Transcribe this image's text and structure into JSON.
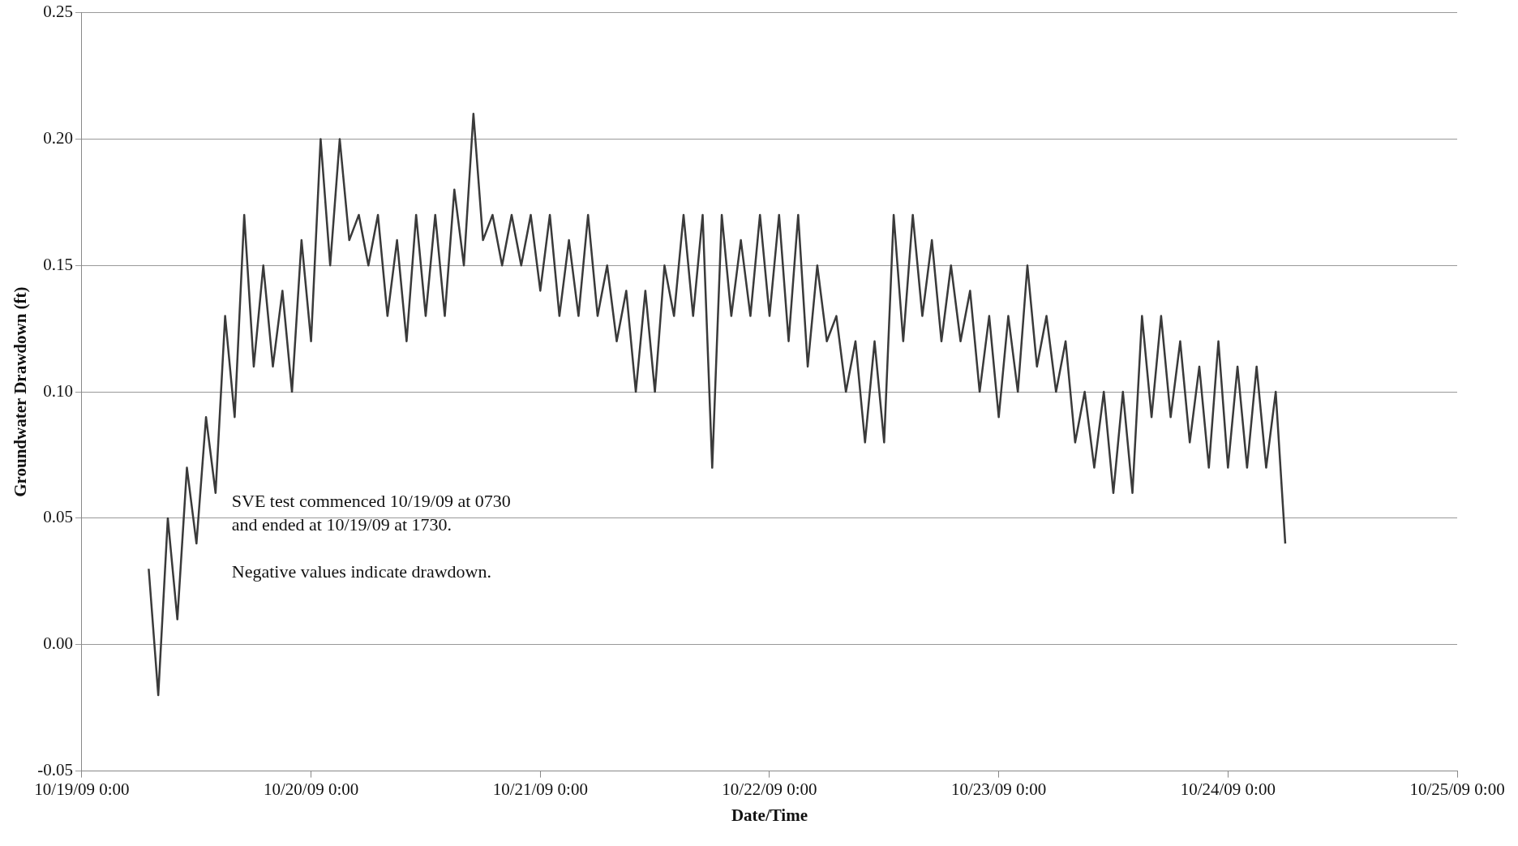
{
  "chart_data": {
    "type": "line",
    "xlabel": "Date/Time",
    "ylabel": "Groundwater Drawdown (ft)",
    "annotations": [
      "SVE test commenced 10/19/09 at 0730\nand ended at 10/19/09 at 1730.",
      "Negative values indicate drawdown."
    ],
    "x": [
      "--10-19T07:00",
      "--10-19T08:00",
      "--10-19T09:00",
      "--10-19T10:00",
      "--10-19T11:00",
      "--10-19T12:00",
      "--10-19T13:00",
      "--10-19T14:00",
      "--10-19T15:00",
      "--10-19T16:00",
      "--10-19T17:00",
      "--10-19T18:00",
      "--10-19T19:00",
      "--10-19T20:00",
      "--10-19T21:00",
      "--10-19T22:00",
      "--10-19T23:00",
      "--10-20T00:00",
      "--10-20T01:00",
      "--10-20T02:00",
      "--10-20T03:00",
      "--10-20T04:00",
      "--10-20T05:00",
      "--10-20T06:00",
      "--10-20T07:00",
      "--10-20T08:00",
      "--10-20T09:00",
      "--10-20T10:00",
      "--10-20T11:00",
      "--10-20T12:00",
      "--10-20T13:00",
      "--10-20T14:00",
      "--10-20T15:00",
      "--10-20T16:00",
      "--10-20T17:00",
      "--10-20T18:00",
      "--10-20T19:00",
      "--10-20T20:00",
      "--10-20T21:00",
      "--10-20T22:00",
      "--10-20T23:00",
      "--10-21T00:00",
      "--10-21T01:00",
      "--10-21T02:00",
      "--10-21T03:00",
      "--10-21T04:00",
      "--10-21T05:00",
      "--10-21T06:00",
      "--10-21T07:00",
      "--10-21T08:00",
      "--10-21T09:00",
      "--10-21T10:00",
      "--10-21T11:00",
      "--10-21T12:00",
      "--10-21T13:00",
      "--10-21T14:00",
      "--10-21T15:00",
      "--10-21T16:00",
      "--10-21T17:00",
      "--10-21T18:00",
      "--10-21T19:00",
      "--10-21T20:00",
      "--10-21T21:00",
      "--10-21T22:00",
      "--10-21T23:00",
      "--10-22T00:00",
      "--10-22T01:00",
      "--10-22T02:00",
      "--10-22T03:00",
      "--10-22T04:00",
      "--10-22T05:00",
      "--10-22T06:00",
      "--10-22T07:00",
      "--10-22T08:00",
      "--10-22T09:00",
      "--10-22T10:00",
      "--10-22T11:00",
      "--10-22T12:00",
      "--10-22T13:00",
      "--10-22T14:00",
      "--10-22T15:00",
      "--10-22T16:00",
      "--10-22T17:00",
      "--10-22T18:00",
      "--10-22T19:00",
      "--10-22T20:00",
      "--10-22T21:00",
      "--10-22T22:00",
      "--10-22T23:00",
      "--10-23T00:00",
      "--10-23T01:00",
      "--10-23T02:00",
      "--10-23T03:00",
      "--10-23T04:00",
      "--10-23T05:00",
      "--10-23T06:00",
      "--10-23T07:00",
      "--10-23T08:00",
      "--10-23T09:00",
      "--10-23T10:00",
      "--10-23T11:00",
      "--10-23T12:00",
      "--10-23T13:00",
      "--10-23T14:00",
      "--10-23T15:00",
      "--10-23T16:00",
      "--10-23T17:00",
      "--10-23T18:00",
      "--10-23T19:00",
      "--10-23T20:00",
      "--10-23T21:00",
      "--10-23T22:00",
      "--10-23T23:00",
      "--10-24T00:00",
      "--10-24T01:00",
      "--10-24T02:00",
      "--10-24T03:00",
      "--10-24T04:00",
      "--10-24T05:00",
      "--10-24T06:00"
    ],
    "series": [
      {
        "color": "#3a3a3a",
        "values": [
          0.03,
          -0.02,
          0.05,
          0.01,
          0.07,
          0.04,
          0.09,
          0.06,
          0.13,
          0.09,
          0.17,
          0.11,
          0.15,
          0.11,
          0.14,
          0.1,
          0.16,
          0.12,
          0.2,
          0.15,
          0.2,
          0.16,
          0.17,
          0.15,
          0.17,
          0.13,
          0.16,
          0.12,
          0.17,
          0.13,
          0.17,
          0.13,
          0.18,
          0.15,
          0.21,
          0.16,
          0.17,
          0.15,
          0.17,
          0.15,
          0.17,
          0.14,
          0.17,
          0.13,
          0.16,
          0.13,
          0.17,
          0.13,
          0.15,
          0.12,
          0.14,
          0.1,
          0.14,
          0.1,
          0.15,
          0.13,
          0.17,
          0.13,
          0.17,
          0.07,
          0.17,
          0.13,
          0.16,
          0.13,
          0.17,
          0.13,
          0.17,
          0.12,
          0.17,
          0.11,
          0.15,
          0.12,
          0.13,
          0.1,
          0.12,
          0.08,
          0.12,
          0.08,
          0.17,
          0.12,
          0.17,
          0.13,
          0.16,
          0.12,
          0.15,
          0.12,
          0.14,
          0.1,
          0.13,
          0.09,
          0.13,
          0.1,
          0.15,
          0.11,
          0.13,
          0.1,
          0.12,
          0.08,
          0.1,
          0.07,
          0.1,
          0.06,
          0.1,
          0.06,
          0.13,
          0.09,
          0.13,
          0.09,
          0.12,
          0.08,
          0.11,
          0.07,
          0.12,
          0.07,
          0.11,
          0.07,
          0.11,
          0.07,
          0.1,
          0.04
        ]
      }
    ],
    "xlim": [
      "--10-19",
      "--10-25"
    ],
    "xticks": [
      {
        "value": "--10-19",
        "label": "10/19/09 0:00"
      },
      {
        "value": "--10-20",
        "label": "10/20/09 0:00"
      },
      {
        "value": "--10-21",
        "label": "10/21/09 0:00"
      },
      {
        "value": "--10-22",
        "label": "10/22/09 0:00"
      },
      {
        "value": "--10-23",
        "label": "10/23/09 0:00"
      },
      {
        "value": "--10-24",
        "label": "10/24/09 0:00"
      },
      {
        "value": "--10-25",
        "label": "10/25/09 0:00"
      }
    ],
    "ylim": [
      -0.05,
      0.25
    ],
    "yticks": [
      {
        "value": -0.05,
        "label": "-0.05"
      },
      {
        "value": 0,
        "label": "0.00"
      },
      {
        "value": 0.05,
        "label": "0.05"
      },
      {
        "value": 0.1,
        "label": "0.10"
      },
      {
        "value": 0.15,
        "label": "0.15"
      },
      {
        "value": 0.2,
        "label": "0.20"
      },
      {
        "value": 0.25,
        "label": "0.25"
      }
    ],
    "grid": "y",
    "legend": false,
    "marker": "none",
    "line_style": "solid"
  }
}
